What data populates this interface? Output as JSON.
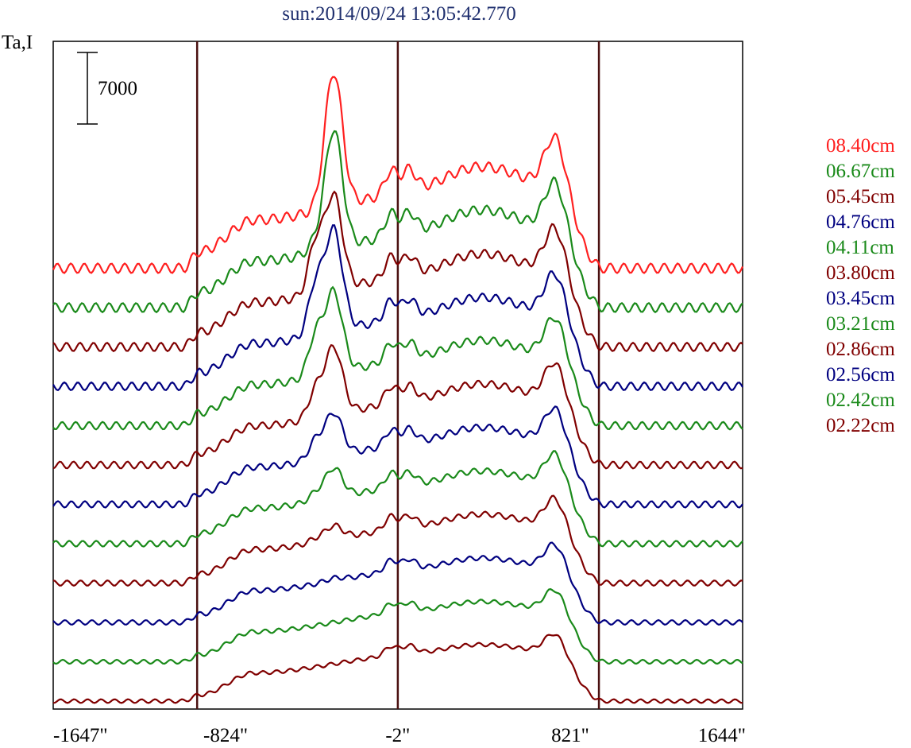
{
  "chart_data": {
    "type": "line",
    "title": "sun:2014/09/24 13:05:42.770",
    "ylabel": "Ta,I",
    "scale_bar_label": "7000",
    "scale_bar_value": 7000,
    "xlim": [
      -1647,
      1644
    ],
    "x_ticks": [
      {
        "value": -1647,
        "label": "-1647\""
      },
      {
        "value": -824,
        "label": "-824\""
      },
      {
        "value": -2,
        "label": "-2\""
      },
      {
        "value": 821,
        "label": "821\""
      },
      {
        "value": 1644,
        "label": "1644\""
      }
    ],
    "vertical_lines": [
      -960,
      -2,
      958
    ],
    "colors": {
      "red": "#ff2020",
      "green": "#1a8a1a",
      "maroon": "#800000",
      "navy": "#000080",
      "frame": "#000000",
      "vline": "#4a1010"
    },
    "series": [
      {
        "name": "08.40cm",
        "color": "#ff2020",
        "bump": 1.0,
        "peakA": 0.0,
        "peakB": 1.0
      },
      {
        "name": "06.67cm",
        "color": "#1a8a1a",
        "bump": 0.95,
        "peakA": 0.1,
        "peakB": 0.88
      },
      {
        "name": "05.45cm",
        "color": "#800000",
        "bump": 0.88,
        "peakA": 0.55,
        "peakB": 0.7
      },
      {
        "name": "04.76cm",
        "color": "#000080",
        "bump": 0.82,
        "peakA": 0.55,
        "peakB": 0.75
      },
      {
        "name": "04.11cm",
        "color": "#1a8a1a",
        "bump": 0.78,
        "peakA": 0.45,
        "peakB": 0.6
      },
      {
        "name": "03.80cm",
        "color": "#800000",
        "bump": 0.72,
        "peakA": 0.3,
        "peakB": 0.5
      },
      {
        "name": "03.45cm",
        "color": "#000080",
        "bump": 0.66,
        "peakA": 0.2,
        "peakB": 0.32
      },
      {
        "name": "03.21cm",
        "color": "#1a8a1a",
        "bump": 0.6,
        "peakA": 0.08,
        "peakB": 0.22
      },
      {
        "name": "02.86cm",
        "color": "#800000",
        "bump": 0.55,
        "peakA": 0.04,
        "peakB": 0.1
      },
      {
        "name": "02.56cm",
        "color": "#000080",
        "bump": 0.48,
        "peakA": 0.0,
        "peakB": 0.02
      },
      {
        "name": "02.42cm",
        "color": "#1a8a1a",
        "bump": 0.42,
        "peakA": 0.0,
        "peakB": 0.0
      },
      {
        "name": "02.22cm",
        "color": "#800000",
        "bump": 0.38,
        "peakA": 0.0,
        "peakB": 0.0
      }
    ]
  }
}
